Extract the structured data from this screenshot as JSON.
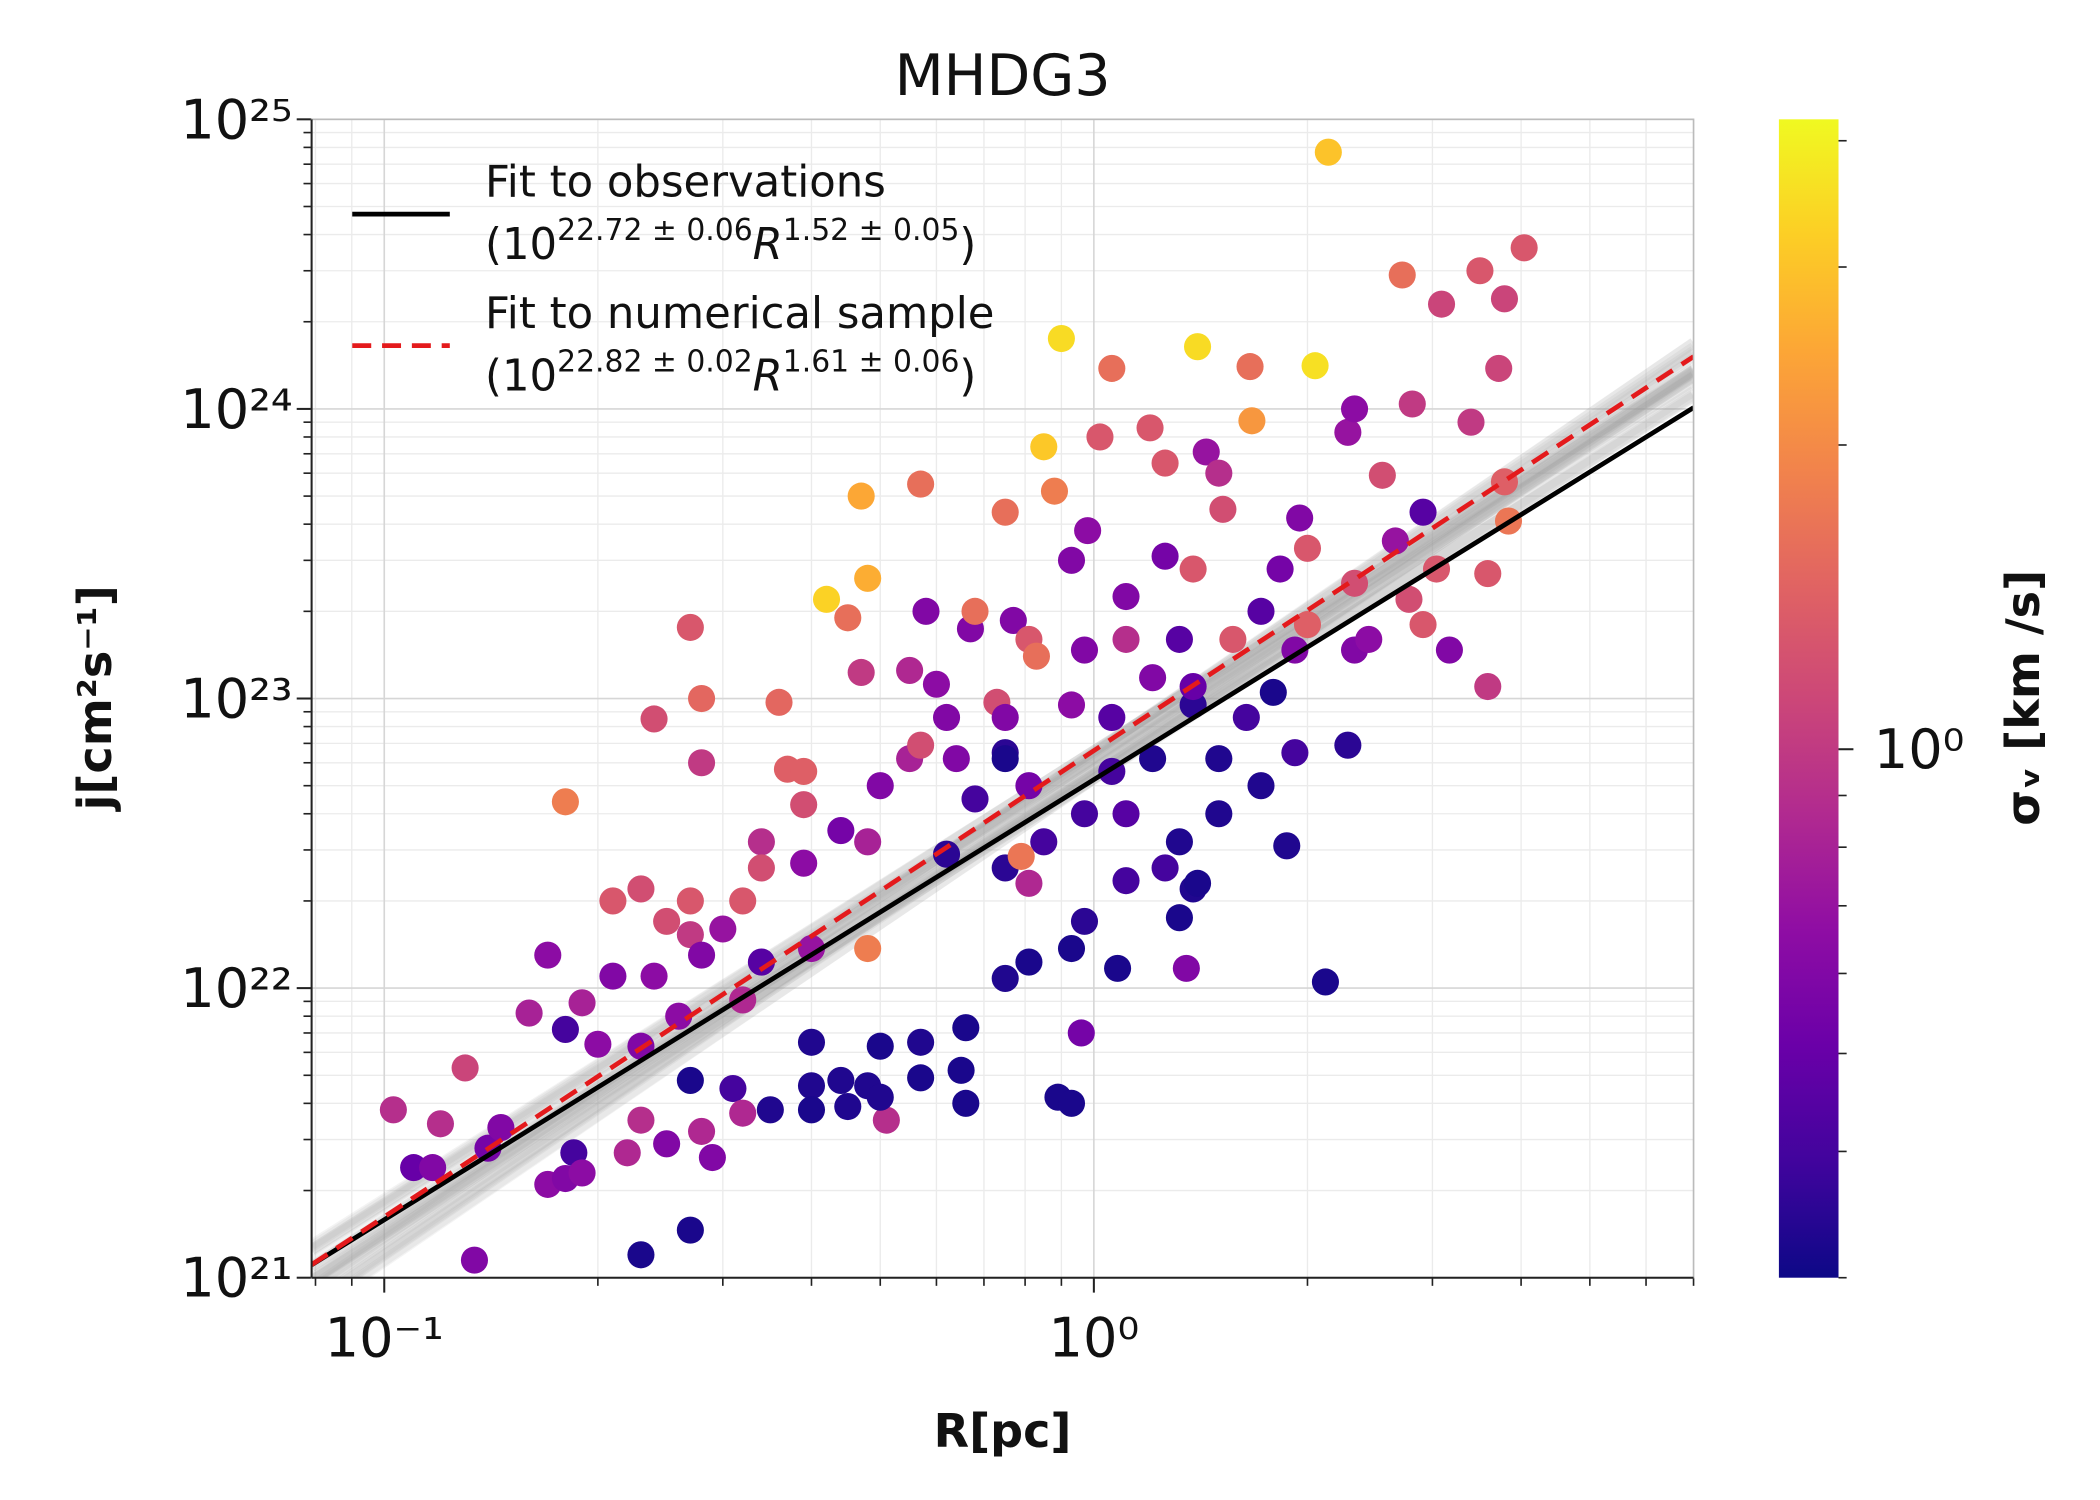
{
  "chart_data": {
    "type": "scatter",
    "title": "MHDG3",
    "xlabel": "R[pc]",
    "ylabel": "j[cm²s⁻¹]",
    "xscale": "log",
    "yscale": "log",
    "xlim": [
      0.079,
      7.0
    ],
    "ylim": [
      1e+21,
      1e+25
    ],
    "xticks": [
      {
        "value": 0.1,
        "label": "10⁻¹"
      },
      {
        "value": 1,
        "label": "10⁰"
      }
    ],
    "yticks": [
      {
        "value": 1e+21,
        "label": "10²¹"
      },
      {
        "value": 1e+22,
        "label": "10²²"
      },
      {
        "value": 1e+23,
        "label": "10²³"
      },
      {
        "value": 1e+24,
        "label": "10²⁴"
      },
      {
        "value": 1e+25,
        "label": "10²⁵"
      }
    ],
    "grid": true,
    "legend": "upper left",
    "colorbar": {
      "label": "σᵥ [km /s]",
      "colormap": "plasma",
      "scale": "log",
      "clim": [
        0.3,
        4.2
      ],
      "ticks": [
        {
          "value": 1,
          "label": "10⁰"
        }
      ]
    },
    "fits": [
      {
        "name": "Fit to observations",
        "color": "#000000",
        "dash": false,
        "formula": [
          "(10",
          "22.72 ± 0.06",
          "R",
          "1.52 ± 0.05",
          ")"
        ]
      },
      {
        "name": "Fit to numerical sample",
        "color": "#e41a1c",
        "dash": true,
        "band": true,
        "formula": [
          "(10",
          "22.82 ± 0.02",
          "R",
          "1.61 ± 0.06",
          ")"
        ]
      }
    ],
    "series": [
      {
        "x": [
          2.14,
          4.04,
          3.5,
          3.09,
          2.72,
          3.79,
          0.9,
          1.4,
          2.05,
          1.06,
          1.66,
          3.72,
          0.85,
          1.67,
          1.02,
          1.2,
          2.28,
          2.81,
          0.47,
          0.57,
          0.75,
          0.88,
          0.42,
          0.48,
          0.98,
          0.93,
          1.38,
          1.52,
          1.44,
          1.83,
          2.0,
          2.33,
          2.55,
          2.91,
          3.4,
          3.79,
          3.59,
          3.84,
          3.59,
          2.78,
          2.33,
          2.28,
          2.12,
          1.87,
          1.92,
          2.0,
          0.18,
          0.27,
          0.28,
          0.24,
          0.36,
          0.37,
          0.39,
          0.28,
          0.45,
          0.47,
          0.58,
          0.55,
          0.6,
          0.67,
          0.77,
          0.81,
          0.83,
          0.73,
          0.75,
          0.64,
          0.5,
          0.44,
          0.39,
          0.34,
          0.34,
          0.23,
          0.21,
          0.27,
          0.32,
          0.25,
          0.27,
          0.3,
          0.17,
          0.21,
          0.24,
          0.28,
          0.32,
          0.16,
          0.19,
          0.18,
          0.2,
          0.23,
          0.26,
          0.13,
          0.103,
          0.12,
          0.11,
          0.117,
          0.14,
          0.146,
          0.17,
          0.18,
          0.185,
          0.19,
          0.134,
          0.23,
          0.27,
          0.22,
          0.23,
          0.25,
          0.28,
          0.29,
          0.27,
          0.31,
          0.32,
          0.35,
          0.4,
          0.4,
          0.44,
          0.48,
          0.51,
          0.5,
          0.45,
          0.57,
          0.66,
          0.65,
          0.89,
          0.93,
          0.96,
          0.4,
          0.5,
          0.57,
          0.66,
          0.75,
          0.81,
          0.93,
          1.08,
          0.97,
          1.11,
          1.26,
          1.38,
          1.11,
          0.97,
          0.85,
          0.75,
          0.62,
          0.68,
          0.81,
          1.06,
          1.21,
          1.5,
          1.64,
          1.38,
          1.21,
          1.06,
          0.93,
          0.75,
          0.62,
          0.55,
          0.75,
          1.5,
          1.32,
          1.4,
          1.32,
          1.35,
          0.81,
          0.79,
          0.48,
          1.57,
          1.72,
          1.32,
          1.38,
          1.11,
          0.97,
          0.68,
          0.57,
          0.39,
          0.48,
          0.4,
          0.34,
          3.04,
          2.91,
          2.44,
          1.79,
          1.72,
          1.92,
          2.33,
          2.66,
          1.95,
          1.5,
          1.26,
          1.11,
          1.26,
          3.17
        ],
        "values": [
          7.7e+24,
          3.6e+24,
          3e+24,
          2.3e+24,
          2.9e+24,
          2.4e+24,
          1.75e+24,
          1.64e+24,
          1.41e+24,
          1.38e+24,
          1.4e+24,
          1.38e+24,
          7.4e+23,
          9.1e+23,
          8e+23,
          8.6e+23,
          8.3e+23,
          1.04e+24,
          5e+23,
          5.5e+23,
          4.4e+23,
          5.2e+23,
          2.2e+23,
          2.6e+23,
          3.8e+23,
          3e+23,
          2.8e+23,
          4.5e+23,
          7.1e+23,
          2.8e+23,
          3.3e+23,
          1e+24,
          5.9e+23,
          4.4e+23,
          9e+23,
          5.6e+23,
          2.7e+23,
          4.1e+23,
          1.1e+23,
          2.2e+23,
          1.47e+23,
          6.9e+22,
          1.05e+22,
          3.1e+22,
          6.5e+22,
          1.8e+23,
          4.4e+22,
          1.76e+23,
          1e+23,
          8.5e+22,
          9.7e+22,
          5.7e+22,
          5.6e+22,
          6e+22,
          1.9e+23,
          1.23e+23,
          2e+23,
          1.25e+23,
          1.12e+23,
          1.74e+23,
          1.86e+23,
          1.6e+23,
          1.4e+23,
          9.7e+22,
          6.5e+22,
          6.2e+22,
          5e+22,
          3.5e+22,
          2.7e+22,
          3.2e+22,
          2.6e+22,
          2.2e+22,
          2e+22,
          2e+22,
          2e+22,
          1.7e+22,
          1.53e+22,
          1.6e+22,
          1.3e+22,
          1.1e+22,
          1.1e+22,
          1.3e+22,
          9.1e+21,
          8.2e+21,
          8.9e+21,
          7.2e+21,
          6.4e+21,
          6.3e+21,
          8e+21,
          5.3e+21,
          3.8e+21,
          3.4e+21,
          2.4e+21,
          2.4e+21,
          2.8e+21,
          3.3e+21,
          2.1e+21,
          2.2e+21,
          2.7e+21,
          2.3e+21,
          1.15e+21,
          1.2e+21,
          1.46e+21,
          2.7e+21,
          3.5e+21,
          2.9e+21,
          3.2e+21,
          2.6e+21,
          4.8e+21,
          4.5e+21,
          3.7e+21,
          3.8e+21,
          4.6e+21,
          3.8e+21,
          4.8e+21,
          4.6e+21,
          3.5e+21,
          4.2e+21,
          3.9e+21,
          4.9e+21,
          4e+21,
          5.2e+21,
          4.2e+21,
          4e+21,
          7e+21,
          6.5e+21,
          6.3e+21,
          6.5e+21,
          7.3e+21,
          1.08e+22,
          1.23e+22,
          1.37e+22,
          1.17e+22,
          1.7e+22,
          2.35e+22,
          2.6e+22,
          2.2e+22,
          4e+22,
          4e+22,
          3.2e+22,
          2.6e+22,
          2.9e+22,
          4.5e+22,
          5e+22,
          5.6e+22,
          6.2e+22,
          6.2e+22,
          8.6e+22,
          9.5e+22,
          1.18e+23,
          8.6e+22,
          9.5e+22,
          8.6e+22,
          8.6e+22,
          6.2e+22,
          6.2e+22,
          4e+22,
          3.2e+22,
          2.3e+22,
          1.75e+22,
          1.17e+22,
          2.3e+22,
          2.85e+22,
          1.37e+22,
          1.6e+23,
          2e+23,
          1.6e+23,
          1.1e+23,
          2.25e+23,
          1.47e+23,
          2e+23,
          6.9e+22,
          4.3e+22,
          3.2e+22,
          1.37e+22,
          1.23e+22,
          2.8e+23,
          1.8e+23,
          1.6e+23,
          1.05e+23,
          5e+22,
          1.47e+23,
          2.5e+23,
          3.5e+23,
          4.2e+23,
          6e+23,
          3.1e+23,
          1.6e+23,
          6.5e+23,
          1.47e+23
        ],
        "c": [
          3.0,
          1.3,
          1.3,
          1.1,
          1.6,
          1.1,
          3.5,
          3.5,
          3.6,
          1.6,
          1.6,
          1.1,
          3.1,
          2.2,
          1.3,
          1.3,
          0.7,
          1.0,
          2.5,
          1.6,
          1.6,
          1.8,
          3.3,
          2.6,
          0.65,
          0.6,
          1.3,
          1.2,
          0.7,
          0.55,
          1.3,
          0.65,
          1.2,
          0.45,
          1.0,
          1.4,
          1.3,
          1.7,
          1.0,
          1.2,
          0.6,
          0.35,
          0.32,
          0.33,
          0.4,
          1.4,
          1.8,
          1.3,
          1.5,
          1.2,
          1.5,
          1.4,
          1.4,
          1.0,
          1.6,
          1.0,
          0.6,
          0.85,
          0.65,
          0.6,
          0.6,
          1.3,
          1.6,
          1.2,
          0.35,
          0.6,
          0.6,
          0.55,
          0.65,
          0.9,
          1.2,
          1.2,
          1.3,
          1.3,
          1.3,
          1.2,
          1.0,
          0.7,
          0.65,
          0.6,
          0.65,
          0.6,
          0.85,
          0.8,
          0.8,
          0.4,
          0.65,
          0.6,
          0.65,
          1.1,
          0.9,
          0.9,
          0.5,
          0.6,
          0.55,
          0.6,
          0.65,
          0.6,
          0.4,
          0.65,
          0.6,
          0.32,
          0.32,
          0.85,
          0.9,
          0.6,
          0.85,
          0.6,
          0.32,
          0.4,
          0.85,
          0.33,
          0.33,
          0.32,
          0.33,
          0.33,
          0.9,
          0.33,
          0.33,
          0.32,
          0.32,
          0.32,
          0.32,
          0.32,
          0.55,
          0.33,
          0.32,
          0.33,
          0.32,
          0.33,
          0.32,
          0.32,
          0.32,
          0.35,
          0.4,
          0.4,
          0.33,
          0.45,
          0.4,
          0.4,
          0.35,
          0.35,
          0.4,
          0.55,
          0.4,
          0.33,
          0.33,
          0.4,
          0.35,
          0.6,
          0.45,
          0.65,
          0.6,
          0.6,
          0.8,
          0.32,
          0.33,
          0.33,
          0.32,
          0.32,
          0.6,
          0.85,
          1.7,
          1.8,
          1.3,
          0.45,
          0.45,
          0.5,
          0.6,
          0.6,
          1.6,
          1.2,
          1.2,
          0.8,
          0.7,
          0.45,
          1.3,
          1.3,
          0.65,
          0.32,
          0.33,
          0.6,
          1.2,
          0.7,
          0.6,
          0.9,
          0.55,
          0.9,
          1.3,
          0.6
        ]
      }
    ]
  }
}
